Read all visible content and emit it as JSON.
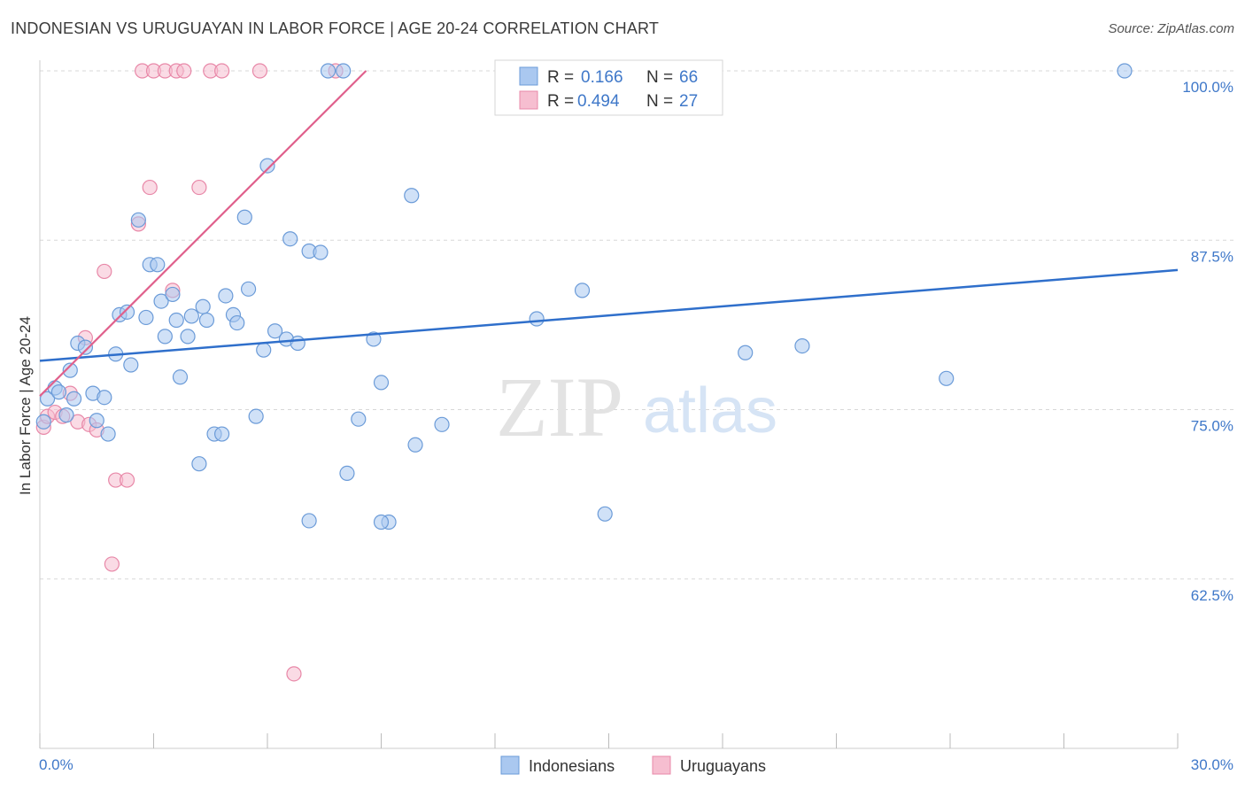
{
  "title": "INDONESIAN VS URUGUAYAN IN LABOR FORCE | AGE 20-24 CORRELATION CHART",
  "source": "Source: ZipAtlas.com",
  "colors": {
    "blue_fill": "#aac8f0",
    "blue_stroke": "#6b9bd8",
    "blue_line": "#2f6fcb",
    "pink_fill": "#f6bed0",
    "pink_stroke": "#e888a8",
    "pink_line": "#e0608c",
    "tick_text": "#3f78c9",
    "grid": "#d8d8d8"
  },
  "legend": {
    "rows": [
      {
        "r_label": "R =",
        "r_value": "0.166",
        "n_label": "N =",
        "n_value": "66"
      },
      {
        "r_label": "R =",
        "r_value": "0.494",
        "n_label": "N =",
        "n_value": "27"
      }
    ]
  },
  "watermark": {
    "zip": "ZIP",
    "atlas": "atlas"
  },
  "chart_data": {
    "type": "scatter",
    "title": "INDONESIAN VS URUGUAYAN IN LABOR FORCE | AGE 20-24 CORRELATION CHART",
    "xlabel": "",
    "ylabel": "In Labor Force | Age 20-24",
    "xlim": [
      0,
      30
    ],
    "ylim": [
      50,
      100
    ],
    "x_tick_labels": [
      "0.0%",
      "30.0%"
    ],
    "y_ticks": [
      62.5,
      75.0,
      87.5,
      100.0
    ],
    "y_tick_labels": [
      "62.5%",
      "75.0%",
      "87.5%",
      "100.0%"
    ],
    "series": [
      {
        "name": "Indonesians",
        "color": "#aac8f0",
        "trend": {
          "x0": 0,
          "y0": 78.6,
          "x1": 30,
          "y1": 85.3
        },
        "points": [
          [
            0.2,
            75.8
          ],
          [
            0.4,
            76.6
          ],
          [
            0.5,
            76.3
          ],
          [
            0.7,
            74.6
          ],
          [
            0.8,
            77.9
          ],
          [
            0.9,
            75.8
          ],
          [
            1.0,
            79.9
          ],
          [
            1.2,
            79.6
          ],
          [
            1.4,
            76.2
          ],
          [
            1.5,
            74.2
          ],
          [
            1.7,
            75.9
          ],
          [
            1.8,
            73.2
          ],
          [
            2.0,
            79.1
          ],
          [
            2.1,
            82.0
          ],
          [
            2.3,
            82.2
          ],
          [
            2.4,
            78.3
          ],
          [
            2.6,
            89.0
          ],
          [
            2.8,
            81.8
          ],
          [
            2.9,
            85.7
          ],
          [
            3.1,
            85.7
          ],
          [
            3.2,
            83.0
          ],
          [
            3.3,
            80.4
          ],
          [
            3.5,
            83.5
          ],
          [
            3.6,
            81.6
          ],
          [
            3.7,
            77.4
          ],
          [
            3.9,
            80.4
          ],
          [
            4.0,
            81.9
          ],
          [
            4.2,
            71.0
          ],
          [
            4.3,
            82.6
          ],
          [
            4.4,
            81.6
          ],
          [
            4.6,
            73.2
          ],
          [
            4.8,
            73.2
          ],
          [
            4.9,
            83.4
          ],
          [
            5.1,
            82.0
          ],
          [
            5.2,
            81.4
          ],
          [
            5.4,
            89.2
          ],
          [
            5.5,
            83.9
          ],
          [
            5.7,
            74.5
          ],
          [
            5.9,
            79.4
          ],
          [
            6.0,
            93.0
          ],
          [
            6.2,
            80.8
          ],
          [
            6.5,
            80.2
          ],
          [
            6.6,
            87.6
          ],
          [
            6.8,
            79.9
          ],
          [
            7.1,
            66.8
          ],
          [
            7.1,
            86.7
          ],
          [
            7.4,
            86.6
          ],
          [
            7.6,
            100.0
          ],
          [
            8.0,
            100.0
          ],
          [
            8.1,
            70.3
          ],
          [
            8.4,
            74.3
          ],
          [
            8.8,
            80.2
          ],
          [
            9.0,
            77.0
          ],
          [
            9.2,
            66.7
          ],
          [
            9.0,
            66.7
          ],
          [
            9.8,
            90.8
          ],
          [
            9.9,
            72.4
          ],
          [
            10.6,
            73.9
          ],
          [
            13.1,
            81.7
          ],
          [
            14.3,
            83.8
          ],
          [
            14.9,
            67.3
          ],
          [
            18.6,
            79.2
          ],
          [
            20.1,
            79.7
          ],
          [
            23.9,
            77.3
          ],
          [
            28.6,
            100.0
          ],
          [
            0.1,
            74.1
          ]
        ]
      },
      {
        "name": "Uruguayans",
        "color": "#f6bed0",
        "trend": {
          "x0": 0,
          "y0": 76.0,
          "x1": 8.6,
          "y1": 100.0
        },
        "points": [
          [
            0.1,
            73.7
          ],
          [
            0.2,
            74.5
          ],
          [
            0.4,
            74.8
          ],
          [
            0.6,
            74.5
          ],
          [
            0.8,
            76.2
          ],
          [
            1.0,
            74.1
          ],
          [
            1.2,
            80.3
          ],
          [
            1.3,
            73.9
          ],
          [
            1.5,
            73.5
          ],
          [
            1.7,
            85.2
          ],
          [
            1.9,
            63.6
          ],
          [
            2.0,
            69.8
          ],
          [
            2.3,
            69.8
          ],
          [
            2.6,
            88.7
          ],
          [
            2.7,
            100.0
          ],
          [
            2.9,
            91.4
          ],
          [
            3.0,
            100.0
          ],
          [
            3.3,
            100.0
          ],
          [
            3.5,
            83.8
          ],
          [
            3.6,
            100.0
          ],
          [
            3.8,
            100.0
          ],
          [
            4.2,
            91.4
          ],
          [
            4.5,
            100.0
          ],
          [
            4.8,
            100.0
          ],
          [
            5.8,
            100.0
          ],
          [
            6.7,
            55.5
          ],
          [
            7.8,
            100.0
          ]
        ]
      }
    ]
  }
}
